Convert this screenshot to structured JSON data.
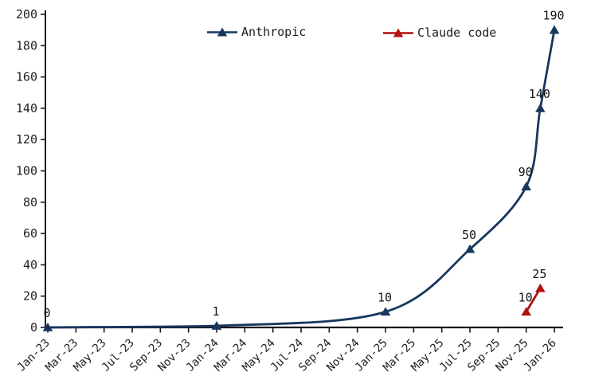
{
  "page": {
    "background": "#ffffff"
  },
  "chart_data": {
    "type": "line",
    "title": "",
    "xlabel": "",
    "ylabel": "",
    "grid": false,
    "legend_position": "top-center",
    "x_axis": {
      "tick_labels": [
        "Jan-23",
        "Mar-23",
        "May-23",
        "Jul-23",
        "Sep-23",
        "Nov-23",
        "Jan-24",
        "Mar-24",
        "May-24",
        "Jul-24",
        "Sep-24",
        "Nov-24",
        "Jan-25",
        "Mar-25",
        "May-25",
        "Jul-25",
        "Sep-25",
        "Nov-25",
        "Jan-26"
      ],
      "tick_months": [
        0,
        2,
        4,
        6,
        8,
        10,
        12,
        14,
        16,
        18,
        20,
        22,
        24,
        26,
        28,
        30,
        32,
        34,
        36
      ],
      "label_rotation_deg": -45
    },
    "y_axis": {
      "min": 0,
      "max": 200,
      "tick_step": 20,
      "ticks": [
        0,
        20,
        40,
        60,
        80,
        100,
        120,
        140,
        160,
        180,
        200
      ]
    },
    "colors": {
      "anthropic": "#17375e",
      "claude_code": "#b01210",
      "axis": "#1a1a1a",
      "tick_text": "#222222",
      "data_label_text": "#141414"
    },
    "series": [
      {
        "name": "Anthropic",
        "color": "#17375e",
        "marker": "filled-triangle-up",
        "smooth": true,
        "points": [
          {
            "date": "Jan-23",
            "month": 0,
            "value": 0,
            "label": "0"
          },
          {
            "date": "Jan-24",
            "month": 12,
            "value": 1,
            "label": "1"
          },
          {
            "date": "Jan-25",
            "month": 24,
            "value": 10,
            "label": "10"
          },
          {
            "date": "Jul-25",
            "month": 30,
            "value": 50,
            "label": "50"
          },
          {
            "date": "Nov-25",
            "month": 34,
            "value": 90,
            "label": "90"
          },
          {
            "date": "Dec-25",
            "month": 35,
            "value": 140,
            "label": "140"
          },
          {
            "date": "Jan-26",
            "month": 36,
            "value": 190,
            "label": "190"
          }
        ]
      },
      {
        "name": "Claude code",
        "color": "#b01210",
        "marker": "filled-triangle-up",
        "smooth": false,
        "points": [
          {
            "date": "Nov-25",
            "month": 34,
            "value": 10,
            "label": "10"
          },
          {
            "date": "Dec-25",
            "month": 35,
            "value": 25,
            "label": "25"
          }
        ]
      }
    ]
  }
}
